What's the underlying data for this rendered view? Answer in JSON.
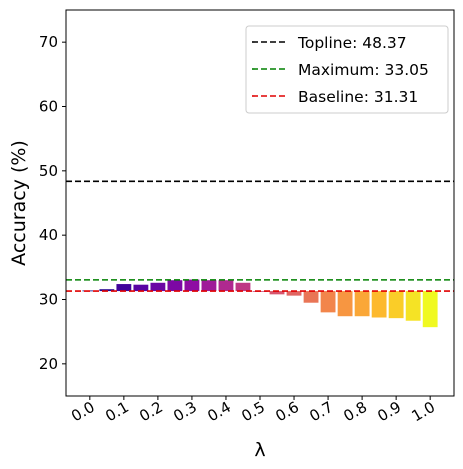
{
  "chart_data": {
    "type": "bar",
    "xlabel": "λ",
    "ylabel": "Accuracy (%)",
    "ylim": [
      15,
      75
    ],
    "yticks": [
      20,
      30,
      40,
      50,
      60,
      70
    ],
    "xtick_labels": [
      "0.0",
      "0.1",
      "0.2",
      "0.3",
      "0.4",
      "0.5",
      "0.6",
      "0.7",
      "0.8",
      "0.9",
      "1.0"
    ],
    "bars": {
      "x": [
        0.0,
        0.05,
        0.1,
        0.15,
        0.2,
        0.25,
        0.3,
        0.35,
        0.4,
        0.45,
        0.5,
        0.55,
        0.6,
        0.65,
        0.7,
        0.75,
        0.8,
        0.85,
        0.9,
        0.95,
        1.0
      ],
      "values": [
        31.4,
        31.6,
        32.4,
        32.3,
        32.6,
        33.0,
        33.1,
        33.0,
        33.0,
        32.6,
        31.3,
        30.8,
        30.6,
        29.5,
        28.0,
        27.4,
        27.4,
        27.2,
        27.1,
        26.7,
        25.7
      ],
      "colormap": "plasma"
    },
    "reference_lines": [
      {
        "name": "Topline: 48.37",
        "value": 48.37,
        "color": "#000000",
        "style": "dashed"
      },
      {
        "name": "Maximum: 33.05",
        "value": 33.05,
        "color": "#008000",
        "style": "dashed"
      },
      {
        "name": "Baseline: 31.31",
        "value": 31.31,
        "color": "#e00000",
        "style": "dashed"
      }
    ],
    "legend_position": "top-right",
    "grid": false
  }
}
